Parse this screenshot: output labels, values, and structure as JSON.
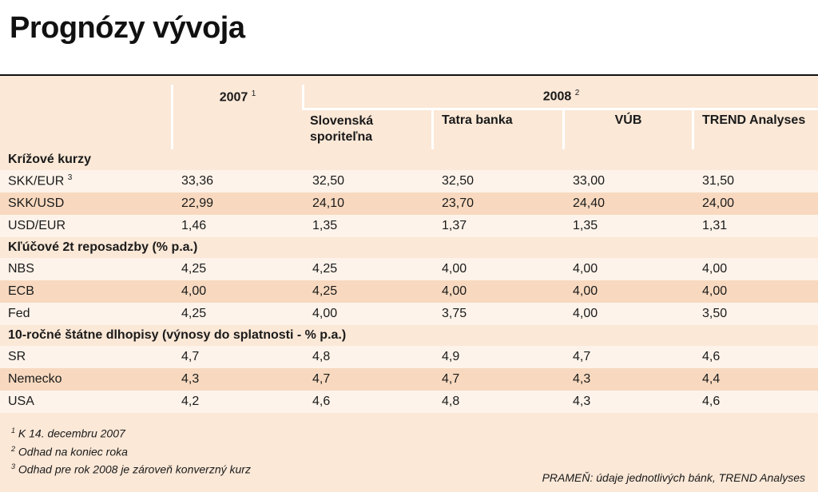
{
  "title": "Prognózy vývoja",
  "header": {
    "y2007": "2007",
    "y2007_note": "1",
    "y2008": "2008",
    "y2008_note": "2",
    "banks": [
      "Slovenská sporiteľna",
      "Tatra banka",
      "VÚB",
      "TREND Analyses"
    ]
  },
  "sections": [
    {
      "label": "Krížové kurzy",
      "rows": [
        {
          "name": "SKK/EUR",
          "note": "3",
          "values": [
            "33,36",
            "32,50",
            "32,50",
            "33,00",
            "31,50"
          ]
        },
        {
          "name": "SKK/USD",
          "note": "",
          "values": [
            "22,99",
            "24,10",
            "23,70",
            "24,40",
            "24,00"
          ]
        },
        {
          "name": "USD/EUR",
          "note": "",
          "values": [
            "1,46",
            "1,35",
            "1,37",
            "1,35",
            "1,31"
          ]
        }
      ]
    },
    {
      "label": "Kľúčové 2t reposadzby (% p.a.)",
      "rows": [
        {
          "name": "NBS",
          "note": "",
          "values": [
            "4,25",
            "4,25",
            "4,00",
            "4,00",
            "4,00"
          ]
        },
        {
          "name": "ECB",
          "note": "",
          "values": [
            "4,00",
            "4,25",
            "4,00",
            "4,00",
            "4,00"
          ]
        },
        {
          "name": "Fed",
          "note": "",
          "values": [
            "4,25",
            "4,00",
            "3,75",
            "4,00",
            "3,50"
          ]
        }
      ]
    },
    {
      "label": "10-ročné štátne dlhopisy (výnosy do splatnosti - % p.a.)",
      "rows": [
        {
          "name": "SR",
          "note": "",
          "values": [
            "4,7",
            "4,8",
            "4,9",
            "4,7",
            "4,6"
          ]
        },
        {
          "name": "Nemecko",
          "note": "",
          "values": [
            "4,3",
            "4,7",
            "4,7",
            "4,3",
            "4,4"
          ]
        },
        {
          "name": "USA",
          "note": "",
          "values": [
            "4,2",
            "4,6",
            "4,8",
            "4,3",
            "4,6"
          ]
        }
      ]
    }
  ],
  "footnotes": [
    {
      "mark": "1",
      "text": "K 14. decembru 2007"
    },
    {
      "mark": "2",
      "text": "Odhad na koniec roka"
    },
    {
      "mark": "3",
      "text": "Odhad pre rok 2008 je zároveň konverzný kurz"
    }
  ],
  "source": "PRAMEŇ: údaje jednotlivých bánk, TREND Analyses",
  "colors": {
    "panel": "#fbe8d7",
    "row_light": "#fdf3ea",
    "row_dark": "#f8d9bf",
    "rule": "#111111"
  }
}
